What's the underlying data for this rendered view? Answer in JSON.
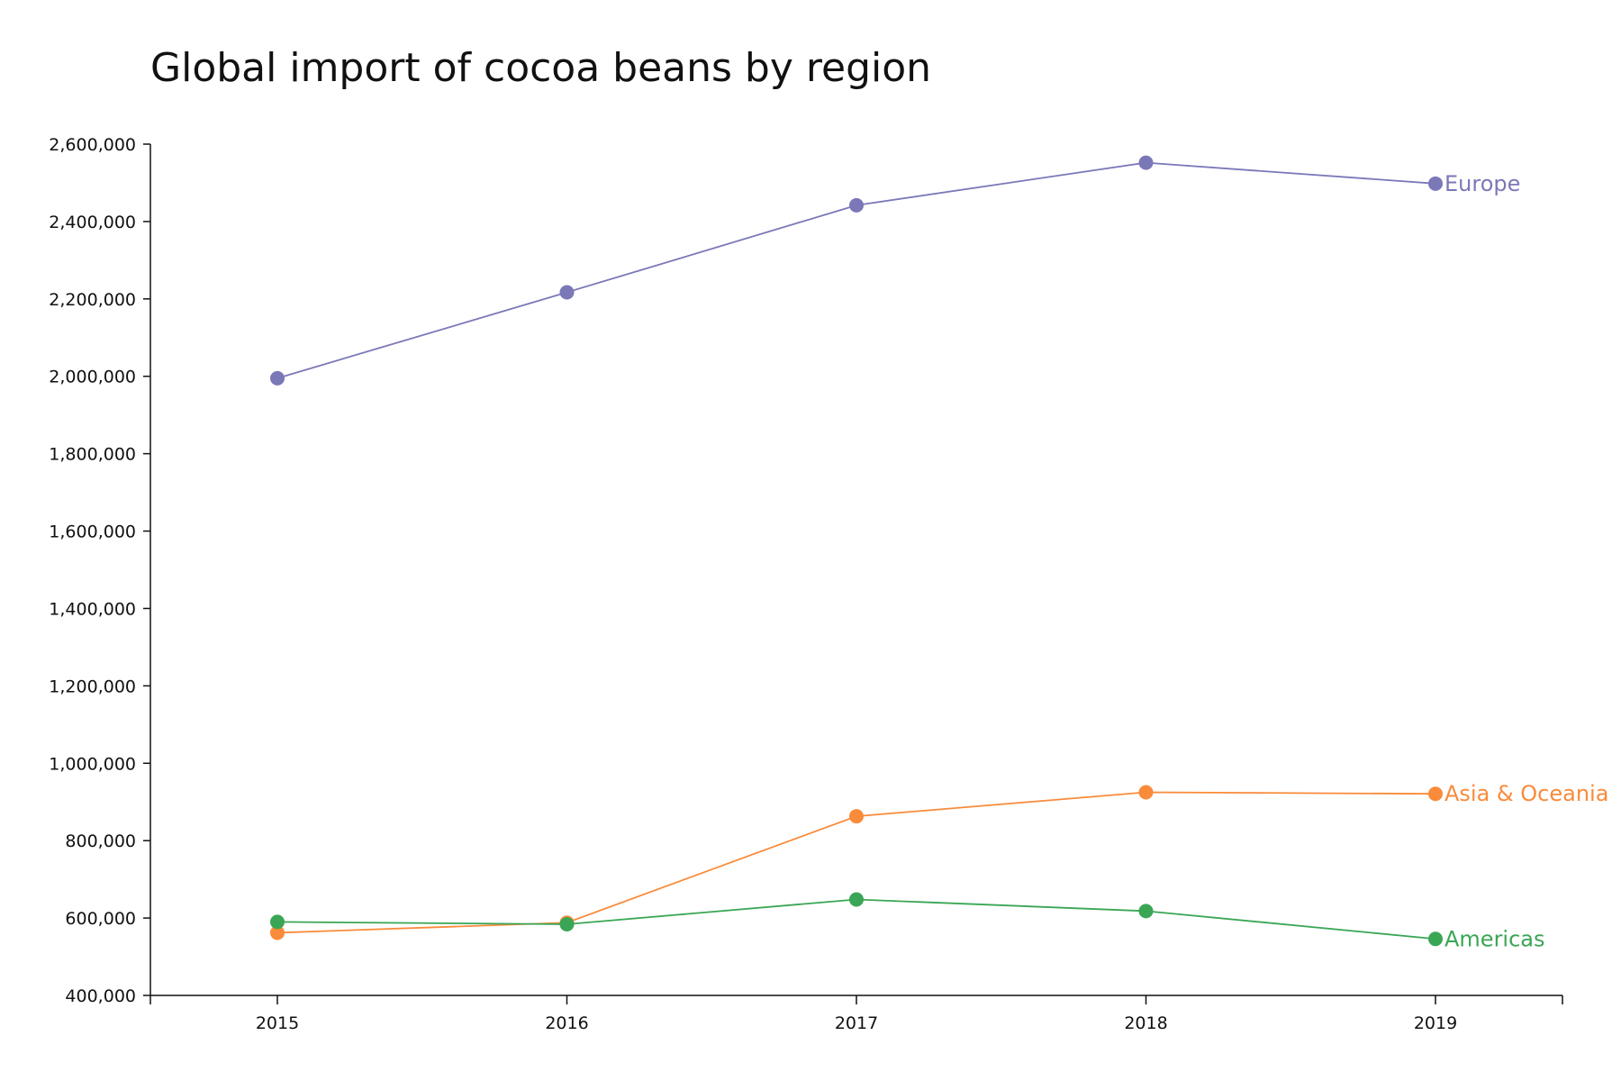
{
  "chart_data": {
    "type": "line",
    "title": "Global import of cocoa beans by region",
    "xlabel": "",
    "ylabel": "",
    "x": [
      "2015",
      "2016",
      "2017",
      "2018",
      "2019"
    ],
    "ylim": [
      400000,
      2600000
    ],
    "y_ticks": [
      "400,000",
      "600,000",
      "800,000",
      "1,000,000",
      "1,200,000",
      "1,400,000",
      "1,600,000",
      "1,800,000",
      "2,000,000",
      "2,200,000",
      "2,400,000",
      "2,600,000"
    ],
    "grid": false,
    "legend": "inline labels at line ends",
    "series": [
      {
        "name": "Europe",
        "color": "#7b78b8",
        "values": [
          1995000,
          2217000,
          2442000,
          2552000,
          2498000
        ]
      },
      {
        "name": "Asia & Oceania",
        "color": "#f98b3a",
        "values": [
          562000,
          588000,
          863000,
          925000,
          921000
        ]
      },
      {
        "name": "Americas",
        "color": "#3aa655",
        "values": [
          590000,
          584000,
          648000,
          618000,
          546000
        ]
      }
    ]
  }
}
